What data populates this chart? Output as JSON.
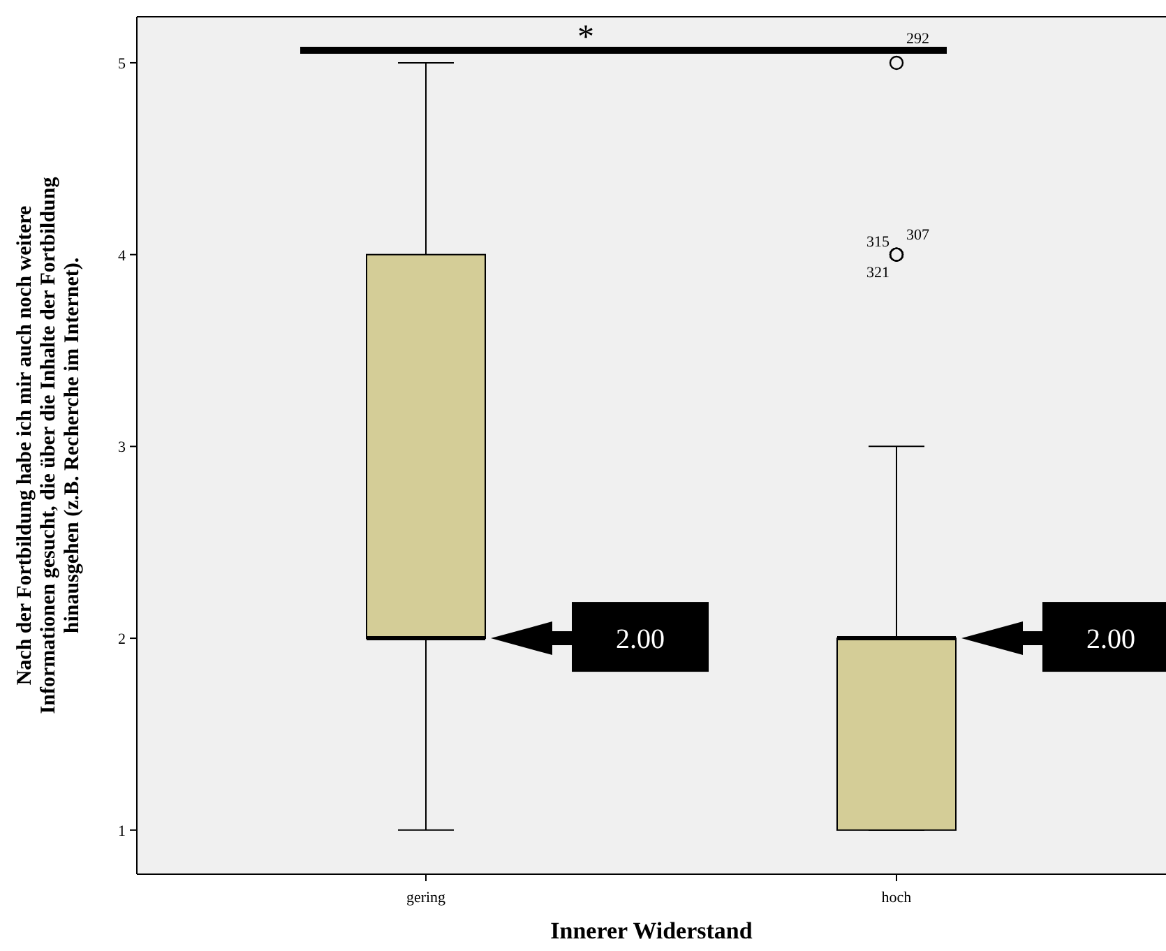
{
  "chart_data": {
    "type": "box",
    "xlabel": "Innerer Widerstand",
    "ylabel": "Nach der Fortbildung habe ich mir auch noch weitere\nInformationen gesucht, die über die Inhalte der Fortbildung\nhinausgehen (z.B. Recherche im Internet).",
    "categories": [
      "gering",
      "hoch"
    ],
    "color": "#d4cd97",
    "boxes": [
      {
        "low": 1,
        "q1": 2,
        "median": 2,
        "q3": 4,
        "high": 5
      },
      {
        "low": 1,
        "q1": 1,
        "median": 2,
        "q3": 2,
        "high": 3,
        "outliers": [
          5,
          4,
          4,
          4
        ]
      }
    ],
    "ylim": [
      0.77,
      5.24
    ],
    "yticks": [
      1,
      2,
      3,
      4,
      5
    ],
    "grid": false,
    "annotations": [
      "*",
      "2.00",
      "2.00",
      "292",
      "315",
      "307",
      "321"
    ]
  }
}
